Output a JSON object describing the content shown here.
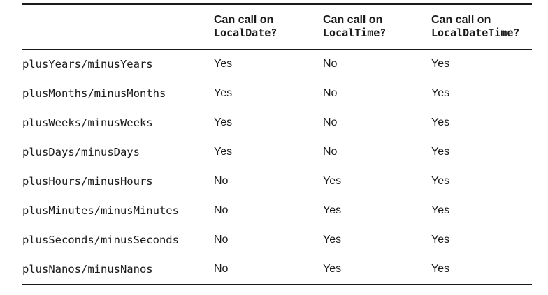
{
  "headers": [
    {
      "line1": "Can call on",
      "line2": "LocalDate?"
    },
    {
      "line1": "Can call on",
      "line2": "LocalTime?"
    },
    {
      "line1": "Can call on",
      "line2": "LocalDateTime?"
    }
  ],
  "rows": [
    {
      "method": "plusYears/minusYears",
      "date": "Yes",
      "time": "No",
      "datetime": "Yes"
    },
    {
      "method": "plusMonths/minusMonths",
      "date": "Yes",
      "time": "No",
      "datetime": "Yes"
    },
    {
      "method": "plusWeeks/minusWeeks",
      "date": "Yes",
      "time": "No",
      "datetime": "Yes"
    },
    {
      "method": "plusDays/minusDays",
      "date": "Yes",
      "time": "No",
      "datetime": "Yes"
    },
    {
      "method": "plusHours/minusHours",
      "date": "No",
      "time": "Yes",
      "datetime": "Yes"
    },
    {
      "method": "plusMinutes/minusMinutes",
      "date": "No",
      "time": "Yes",
      "datetime": "Yes"
    },
    {
      "method": "plusSeconds/minusSeconds",
      "date": "No",
      "time": "Yes",
      "datetime": "Yes"
    },
    {
      "method": "plusNanos/minusNanos",
      "date": "No",
      "time": "Yes",
      "datetime": "Yes"
    }
  ]
}
